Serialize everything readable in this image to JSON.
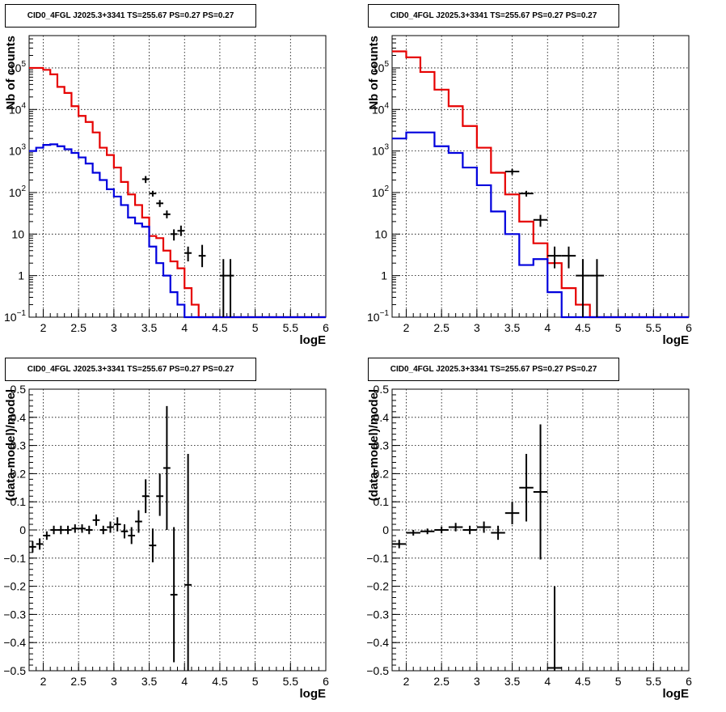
{
  "chart_data": [
    {
      "type": "line",
      "title": "CID0_4FGL J2025.3+3341 TS=255.67 PS=0.27 PS=0.27",
      "xlabel": "logE",
      "ylabel": "Nb of counts",
      "xlim": [
        1.8,
        6
      ],
      "ylim": [
        0.1,
        600000
      ],
      "yscale": "log",
      "grid": true,
      "x_ticks": [
        "2",
        "2.5",
        "3",
        "3.5",
        "4",
        "4.5",
        "5",
        "5.5",
        "6"
      ],
      "y_ticks": [
        "10^-1",
        "1",
        "10",
        "10^2",
        "10^3",
        "10^4",
        "10^5"
      ],
      "bin_edges": [
        1.8,
        1.9,
        2.0,
        2.1,
        2.2,
        2.3,
        2.4,
        2.5,
        2.6,
        2.7,
        2.8,
        2.9,
        3.0,
        3.1,
        3.2,
        3.3,
        3.4,
        3.5,
        3.6,
        3.7,
        3.8,
        3.9,
        4.0,
        4.1,
        4.2,
        4.3,
        4.4,
        4.5,
        4.6,
        4.7,
        4.8,
        4.9,
        5.0,
        5.1,
        5.2,
        5.3,
        5.4,
        5.5,
        5.6,
        5.7,
        5.8,
        5.9,
        6.0
      ],
      "series": [
        {
          "color": "#e60000",
          "values": [
            100000,
            100000,
            90000,
            70000,
            35000,
            25000,
            12000,
            7000,
            5000,
            2800,
            1200,
            800,
            400,
            180,
            90,
            50,
            25,
            9,
            8,
            4,
            2.2,
            1.5,
            0.5,
            0.2,
            0.1,
            0.1,
            0.1,
            0.1,
            0.1,
            0.1,
            0.1,
            0.1,
            0.1,
            0.1,
            0.1,
            0.1,
            0.1,
            0.1,
            0.1,
            0.1,
            0.1,
            0.1
          ]
        },
        {
          "color": "#0000dd",
          "values": [
            1000,
            1200,
            1400,
            1450,
            1300,
            1100,
            900,
            700,
            500,
            300,
            200,
            120,
            80,
            50,
            25,
            18,
            15,
            5,
            2,
            1,
            0.4,
            0.2,
            0.1,
            0.1,
            0.1,
            0.1,
            0.1,
            0.1,
            0.1,
            0.1,
            0.1,
            0.1,
            0.1,
            0.1,
            0.1,
            0.1,
            0.1,
            0.1,
            0.1,
            0.1,
            0.1,
            0.1
          ]
        }
      ],
      "points": [
        {
          "x": 3.45,
          "y": 210,
          "lo": 170,
          "hi": 250
        },
        {
          "x": 3.55,
          "y": 95,
          "lo": 80,
          "hi": 110
        },
        {
          "x": 3.65,
          "y": 55,
          "lo": 45,
          "hi": 66
        },
        {
          "x": 3.75,
          "y": 30,
          "lo": 24,
          "hi": 37
        },
        {
          "x": 3.85,
          "y": 10,
          "lo": 7,
          "hi": 13
        },
        {
          "x": 3.95,
          "y": 12,
          "lo": 9,
          "hi": 16
        },
        {
          "x": 4.05,
          "y": 3.5,
          "lo": 2.2,
          "hi": 5
        },
        {
          "x": 4.25,
          "y": 3,
          "lo": 1.6,
          "hi": 5.5
        },
        {
          "x": 4.55,
          "y": 1,
          "lo": 0.1,
          "hi": 2.5
        },
        {
          "x": 4.65,
          "y": 1,
          "lo": 0.1,
          "hi": 2.5
        }
      ]
    },
    {
      "type": "line",
      "title": "CID0_4FGL J2025.3+3341 TS=255.67 PS=0.27 PS=0.27",
      "xlabel": "logE",
      "ylabel": "Nb of counts",
      "xlim": [
        1.8,
        6
      ],
      "ylim": [
        0.1,
        600000
      ],
      "yscale": "log",
      "grid": true,
      "x_ticks": [
        "2",
        "2.5",
        "3",
        "3.5",
        "4",
        "4.5",
        "5",
        "5.5",
        "6"
      ],
      "y_ticks": [
        "10^-1",
        "1",
        "10",
        "10^2",
        "10^3",
        "10^4",
        "10^5"
      ],
      "bin_edges": [
        1.8,
        2.0,
        2.2,
        2.4,
        2.6,
        2.8,
        3.0,
        3.2,
        3.4,
        3.6,
        3.8,
        4.0,
        4.2,
        4.4,
        4.6,
        4.8,
        5.0,
        5.2,
        5.4,
        5.6,
        5.8,
        6.0
      ],
      "series": [
        {
          "color": "#e60000",
          "values": [
            250000,
            180000,
            80000,
            30000,
            12000,
            4000,
            1200,
            300,
            90,
            20,
            6,
            2,
            0.5,
            0.2,
            0.1,
            0.1,
            0.1,
            0.1,
            0.1,
            0.1,
            0.1
          ]
        },
        {
          "color": "#0000dd",
          "values": [
            2000,
            2800,
            2800,
            1300,
            900,
            400,
            150,
            35,
            10,
            1.8,
            2.5,
            0.4,
            0.1,
            0.1,
            0.1,
            0.1,
            0.1,
            0.1,
            0.1,
            0.1,
            0.1
          ]
        }
      ],
      "points": [
        {
          "x": 3.5,
          "y": 320,
          "lo": 270,
          "hi": 370
        },
        {
          "x": 3.7,
          "y": 95,
          "lo": 80,
          "hi": 110
        },
        {
          "x": 3.9,
          "y": 22,
          "lo": 15,
          "hi": 29
        },
        {
          "x": 4.1,
          "y": 3,
          "lo": 1.5,
          "hi": 5
        },
        {
          "x": 4.3,
          "y": 3,
          "lo": 1.5,
          "hi": 5
        },
        {
          "x": 4.5,
          "y": 1,
          "lo": 0.1,
          "hi": 2.5
        },
        {
          "x": 4.7,
          "y": 1,
          "lo": 0.1,
          "hi": 2.5
        }
      ]
    },
    {
      "type": "scatter",
      "title": "CID0_4FGL J2025.3+3341 TS=255.67 PS=0.27 PS=0.27",
      "xlabel": "logE",
      "ylabel": "(data-model)/model",
      "xlim": [
        1.8,
        6
      ],
      "ylim": [
        -0.5,
        0.5
      ],
      "grid": true,
      "x_ticks": [
        "2",
        "2.5",
        "3",
        "3.5",
        "4",
        "4.5",
        "5",
        "5.5",
        "6"
      ],
      "y_ticks": [
        "-0.5",
        "-0.4",
        "-0.3",
        "-0.2",
        "-0.1",
        "0",
        "0.1",
        "0.2",
        "0.3",
        "0.4",
        "0.5"
      ],
      "bin_width": 0.1,
      "points": [
        {
          "x": 1.85,
          "y": -0.06,
          "lo": -0.08,
          "hi": -0.04
        },
        {
          "x": 1.95,
          "y": -0.05,
          "lo": -0.07,
          "hi": -0.03
        },
        {
          "x": 2.05,
          "y": -0.02,
          "lo": -0.035,
          "hi": -0.005
        },
        {
          "x": 2.15,
          "y": 0.0,
          "lo": -0.015,
          "hi": 0.015
        },
        {
          "x": 2.25,
          "y": 0.0,
          "lo": -0.015,
          "hi": 0.015
        },
        {
          "x": 2.35,
          "y": 0.0,
          "lo": -0.015,
          "hi": 0.015
        },
        {
          "x": 2.45,
          "y": 0.005,
          "lo": -0.01,
          "hi": 0.02
        },
        {
          "x": 2.55,
          "y": 0.005,
          "lo": -0.01,
          "hi": 0.02
        },
        {
          "x": 2.65,
          "y": 0.0,
          "lo": -0.015,
          "hi": 0.015
        },
        {
          "x": 2.75,
          "y": 0.035,
          "lo": 0.015,
          "hi": 0.055
        },
        {
          "x": 2.85,
          "y": 0.0,
          "lo": -0.015,
          "hi": 0.015
        },
        {
          "x": 2.95,
          "y": 0.01,
          "lo": -0.01,
          "hi": 0.03
        },
        {
          "x": 3.05,
          "y": 0.02,
          "lo": -0.005,
          "hi": 0.045
        },
        {
          "x": 3.15,
          "y": -0.005,
          "lo": -0.03,
          "hi": 0.02
        },
        {
          "x": 3.25,
          "y": -0.02,
          "lo": -0.05,
          "hi": 0.01
        },
        {
          "x": 3.35,
          "y": 0.03,
          "lo": -0.01,
          "hi": 0.07
        },
        {
          "x": 3.45,
          "y": 0.12,
          "lo": 0.06,
          "hi": 0.18
        },
        {
          "x": 3.55,
          "y": -0.055,
          "lo": -0.115,
          "hi": 0.005
        },
        {
          "x": 3.65,
          "y": 0.12,
          "lo": 0.05,
          "hi": 0.2
        },
        {
          "x": 3.75,
          "y": 0.22,
          "lo": 0.0,
          "hi": 0.44
        },
        {
          "x": 3.85,
          "y": -0.23,
          "lo": -0.47,
          "hi": 0.01
        },
        {
          "x": 4.05,
          "y": -0.195,
          "lo": -0.5,
          "hi": 0.27
        }
      ]
    },
    {
      "type": "scatter",
      "title": "CID0_4FGL J2025.3+3341 TS=255.67 PS=0.27 PS=0.27",
      "xlabel": "logE",
      "ylabel": "(data-model)/model",
      "xlim": [
        1.8,
        6
      ],
      "ylim": [
        -0.5,
        0.5
      ],
      "grid": true,
      "x_ticks": [
        "2",
        "2.5",
        "3",
        "3.5",
        "4",
        "4.5",
        "5",
        "5.5",
        "6"
      ],
      "y_ticks": [
        "-0.5",
        "-0.4",
        "-0.3",
        "-0.2",
        "-0.1",
        "0",
        "0.1",
        "0.2",
        "0.3",
        "0.4",
        "0.5"
      ],
      "bin_width": 0.2,
      "points": [
        {
          "x": 1.9,
          "y": -0.05,
          "lo": -0.065,
          "hi": -0.035
        },
        {
          "x": 2.1,
          "y": -0.01,
          "lo": -0.02,
          "hi": 0.0
        },
        {
          "x": 2.3,
          "y": -0.005,
          "lo": -0.015,
          "hi": 0.005
        },
        {
          "x": 2.5,
          "y": 0.0,
          "lo": -0.012,
          "hi": 0.012
        },
        {
          "x": 2.7,
          "y": 0.01,
          "lo": -0.005,
          "hi": 0.025
        },
        {
          "x": 2.9,
          "y": 0.0,
          "lo": -0.015,
          "hi": 0.015
        },
        {
          "x": 3.1,
          "y": 0.01,
          "lo": -0.01,
          "hi": 0.03
        },
        {
          "x": 3.3,
          "y": -0.01,
          "lo": -0.035,
          "hi": 0.015
        },
        {
          "x": 3.5,
          "y": 0.06,
          "lo": 0.02,
          "hi": 0.1
        },
        {
          "x": 3.7,
          "y": 0.15,
          "lo": 0.03,
          "hi": 0.27
        },
        {
          "x": 3.9,
          "y": 0.135,
          "lo": -0.105,
          "hi": 0.375
        },
        {
          "x": 4.1,
          "y": -0.49,
          "lo": -0.5,
          "hi": -0.2
        }
      ]
    }
  ]
}
